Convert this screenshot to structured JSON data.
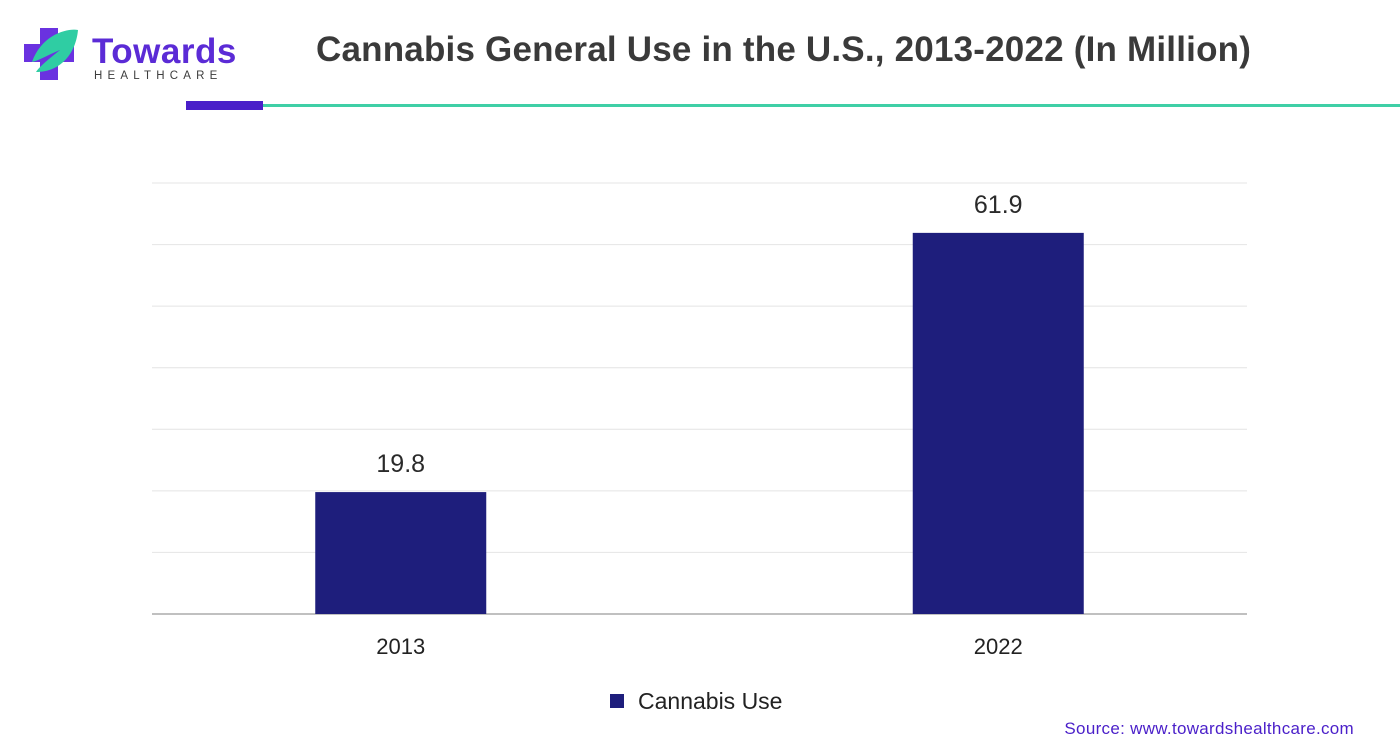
{
  "header": {
    "logo_name": "Towards",
    "logo_sub": "HEALTHCARE",
    "title": "Cannabis General Use in the U.S., 2013-2022 (In Million)"
  },
  "colors": {
    "bar": "#1e1e7c",
    "accent_purple": "#4a1fc9",
    "accent_teal": "#3fcfa6",
    "grid": "#e4e4e4"
  },
  "chart_data": {
    "type": "bar",
    "categories": [
      "2013",
      "2022"
    ],
    "series": [
      {
        "name": "Cannabis Use",
        "values": [
          19.8,
          61.9
        ]
      }
    ],
    "data_labels": [
      "19.8",
      "61.9"
    ],
    "ylim": [
      0,
      70
    ],
    "y_gridlines": 7,
    "grid": true,
    "legend_position": "bottom-center",
    "xlabel": "",
    "ylabel": ""
  },
  "legend": {
    "label": "Cannabis Use"
  },
  "footer": {
    "source": "Source: www.towardshealthcare.com"
  }
}
